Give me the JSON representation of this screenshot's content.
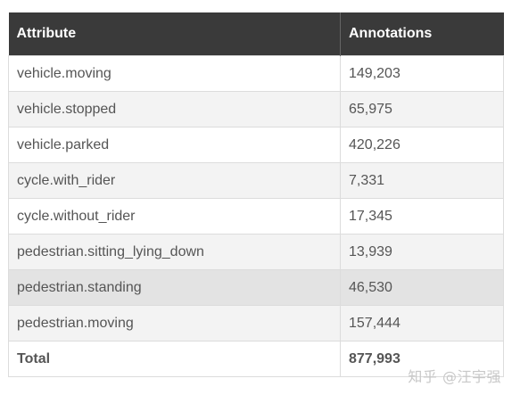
{
  "table": {
    "headers": [
      "Attribute",
      "Annotations"
    ],
    "rows": [
      {
        "attribute": "vehicle.moving",
        "annotations": "149,203"
      },
      {
        "attribute": "vehicle.stopped",
        "annotations": "65,975"
      },
      {
        "attribute": "vehicle.parked",
        "annotations": "420,226"
      },
      {
        "attribute": "cycle.with_rider",
        "annotations": "7,331"
      },
      {
        "attribute": "cycle.without_rider",
        "annotations": "17,345"
      },
      {
        "attribute": "pedestrian.sitting_lying_down",
        "annotations": "13,939"
      },
      {
        "attribute": "pedestrian.standing",
        "annotations": "46,530"
      },
      {
        "attribute": "pedestrian.moving",
        "annotations": "157,444"
      }
    ],
    "total": {
      "label": "Total",
      "value": "877,993"
    }
  },
  "watermark": "知乎 @汪宇强",
  "colors": {
    "header_bg": "#3a3a3a",
    "header_text": "#ffffff",
    "row_alt_bg": "#f3f3f3",
    "row_highlight_bg": "#e3e3e3",
    "body_text": "#555555"
  }
}
